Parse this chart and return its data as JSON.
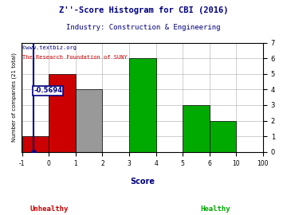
{
  "title_line1": "Z''-Score Histogram for CBI (2016)",
  "title_line2": "Industry: Construction & Engineering",
  "watermark1": "©www.textbiz.org",
  "watermark2": "The Research Foundation of SUNY",
  "xlabel": "Score",
  "ylabel": "Number of companies (21 total)",
  "bin_labels": [
    "-1",
    "0",
    "1",
    "2",
    "3",
    "4",
    "5",
    "6",
    "10",
    "100"
  ],
  "bar_heights": [
    1,
    5,
    4,
    0,
    6,
    0,
    3,
    2,
    0
  ],
  "bar_colors": [
    "#cc0000",
    "#cc0000",
    "#999999",
    "#999999",
    "#00aa00",
    "#00aa00",
    "#00aa00",
    "#00aa00",
    "#00aa00"
  ],
  "marker_bin": 0.43,
  "marker_label": "-0.5694",
  "ylim": [
    0,
    7
  ],
  "ytick_positions": [
    0,
    1,
    2,
    3,
    4,
    5,
    6,
    7
  ],
  "background_color": "#ffffff",
  "unhealthy_color": "#cc0000",
  "healthy_color": "#00aa00",
  "title_color": "#000080",
  "watermark1_color": "#000080",
  "watermark2_color": "#cc0000",
  "xlabel_color": "#000080",
  "ylabel_color": "#000000",
  "marker_color": "#000080",
  "grid_color": "#aaaaaa"
}
